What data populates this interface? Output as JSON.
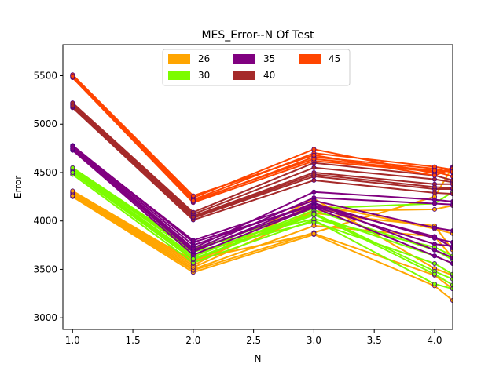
{
  "chart_data": {
    "type": "line",
    "title": "MES_Error--N Of Test",
    "xlabel": "N",
    "ylabel": "Error",
    "xlim": [
      0.92,
      4.15
    ],
    "ylim": [
      2880,
      5820
    ],
    "x": [
      1.0,
      2.0,
      3.0,
      4.0,
      4.15
    ],
    "xticks": [
      1.0,
      1.5,
      2.0,
      2.5,
      3.0,
      3.5,
      4.0
    ],
    "xtick_labels": [
      "1.0",
      "1.5",
      "2.0",
      "2.5",
      "3.0",
      "3.5",
      "4.0"
    ],
    "yticks": [
      3000,
      3500,
      4000,
      4500,
      5000,
      5500
    ],
    "ytick_labels": [
      "3000",
      "3500",
      "4000",
      "4500",
      "5000",
      "5500"
    ],
    "grid": false,
    "legend_placement": "upper center",
    "legend_columns": 3,
    "marker_color": "#4b0082",
    "series": [
      {
        "name": "26",
        "color": "#ffa500",
        "lines": [
          [
            4250,
            3470,
            3860,
            3330,
            3180
          ],
          [
            4260,
            3490,
            3880,
            4250,
            4560
          ],
          [
            4270,
            3500,
            3950,
            3840,
            3620
          ],
          [
            4280,
            3520,
            4080,
            3950,
            3700
          ],
          [
            4290,
            3540,
            4180,
            3920,
            3870
          ],
          [
            4300,
            3560,
            4230,
            3510,
            3440
          ],
          [
            4310,
            3580,
            4100,
            4120,
            4160
          ],
          [
            4260,
            3600,
            3870,
            3440,
            3300
          ]
        ]
      },
      {
        "name": "30",
        "color": "#7cfc00",
        "lines": [
          [
            4480,
            3570,
            4010,
            3350,
            3300
          ],
          [
            4500,
            3600,
            4060,
            3640,
            3560
          ],
          [
            4510,
            3630,
            4110,
            3700,
            3600
          ],
          [
            4520,
            3650,
            4080,
            3480,
            3400
          ],
          [
            4530,
            3680,
            3990,
            3560,
            3450
          ],
          [
            4540,
            3700,
            4130,
            4180,
            4300
          ],
          [
            4550,
            3720,
            4020,
            3730,
            3640
          ],
          [
            4500,
            3610,
            4070,
            3450,
            3340
          ]
        ]
      },
      {
        "name": "35",
        "color": "#800080",
        "lines": [
          [
            4730,
            3650,
            4140,
            3640,
            3560
          ],
          [
            4740,
            3680,
            4190,
            3700,
            3620
          ],
          [
            4750,
            3700,
            4240,
            4180,
            4170
          ],
          [
            4760,
            3720,
            4300,
            4220,
            4200
          ],
          [
            4770,
            3750,
            4180,
            3820,
            3780
          ],
          [
            4780,
            3780,
            4160,
            3840,
            3720
          ],
          [
            4770,
            3800,
            4210,
            3930,
            3900
          ],
          [
            4745,
            3690,
            4150,
            3760,
            3740
          ]
        ]
      },
      {
        "name": "40",
        "color": "#a52a2a",
        "lines": [
          [
            5170,
            4010,
            4420,
            4290,
            4280
          ],
          [
            5180,
            4030,
            4460,
            4330,
            4330
          ],
          [
            5200,
            4050,
            4500,
            4380,
            4380
          ],
          [
            5210,
            4070,
            4550,
            4430,
            4400
          ],
          [
            5220,
            4090,
            4600,
            4470,
            4420
          ],
          [
            5190,
            4040,
            4480,
            4350,
            4340
          ]
        ]
      },
      {
        "name": "45",
        "color": "#ff4500",
        "lines": [
          [
            5480,
            4190,
            4620,
            4510,
            4460
          ],
          [
            5490,
            4200,
            4660,
            4540,
            4500
          ],
          [
            5500,
            4220,
            4700,
            4560,
            4530
          ],
          [
            5500,
            4240,
            4740,
            4490,
            4550
          ],
          [
            5510,
            4260,
            4680,
            4470,
            4540
          ],
          [
            5495,
            4210,
            4640,
            4520,
            4510
          ]
        ]
      }
    ]
  }
}
